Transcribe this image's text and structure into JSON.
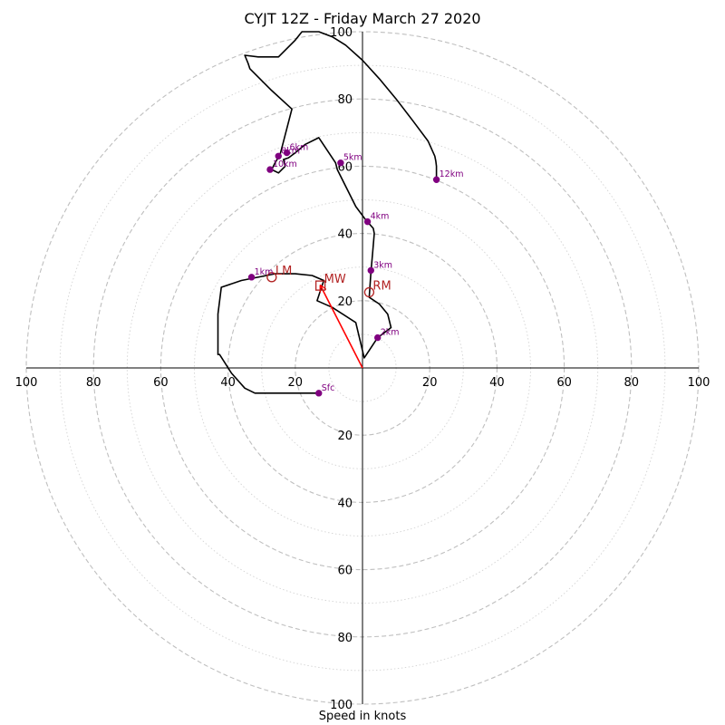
{
  "chart_data": {
    "type": "hodograph",
    "title": "CYJT 12Z - Friday March 27 2020",
    "xlabel": "Speed in knots",
    "units": "knots",
    "xlim": [
      -100,
      100
    ],
    "ylim": [
      -100,
      100
    ],
    "ring_major_step": 20,
    "ring_minor_step": 10,
    "axis_tick_labels": [
      "100",
      "80",
      "60",
      "40",
      "20"
    ],
    "hodograph": {
      "color": "#000000",
      "points": [
        [
          -13,
          -7.5
        ],
        [
          -32,
          -7.5
        ],
        [
          -35,
          -6
        ],
        [
          -39,
          -1.5
        ],
        [
          -42.5,
          4
        ],
        [
          -43,
          4
        ],
        [
          -43,
          16
        ],
        [
          -42,
          24
        ],
        [
          -36,
          26
        ],
        [
          -26,
          28
        ],
        [
          -20,
          28
        ],
        [
          -15,
          27.5
        ],
        [
          -11.5,
          26
        ],
        [
          -13.5,
          20
        ],
        [
          -9,
          18
        ],
        [
          -2,
          13.5
        ],
        [
          0.5,
          3
        ],
        [
          4.5,
          9
        ],
        [
          8.5,
          12
        ],
        [
          7.5,
          16
        ],
        [
          5,
          19
        ],
        [
          2,
          21
        ],
        [
          2.5,
          28.5
        ],
        [
          3,
          34
        ],
        [
          3.5,
          40
        ],
        [
          3.2,
          41.5
        ],
        [
          1,
          44
        ],
        [
          -2,
          48
        ],
        [
          -7.5,
          59
        ],
        [
          -8,
          61
        ],
        [
          -13,
          68.5
        ],
        [
          -17,
          66.5
        ],
        [
          -20,
          64
        ],
        [
          -22,
          62.5
        ],
        [
          -23.5,
          62
        ],
        [
          -23,
          60
        ],
        [
          -25,
          58
        ],
        [
          -27,
          59
        ],
        [
          -26,
          61
        ],
        [
          -24.5,
          63.5
        ],
        [
          -21,
          77
        ],
        [
          -27,
          82.5
        ],
        [
          -33.5,
          89
        ],
        [
          -34,
          90.5
        ],
        [
          -35,
          93
        ],
        [
          -31,
          92.5
        ],
        [
          -25,
          92.5
        ],
        [
          -20,
          97.5
        ],
        [
          -18,
          100
        ],
        [
          -13,
          100
        ],
        [
          -9,
          98.5
        ],
        [
          -5,
          96
        ],
        [
          0,
          91.5
        ],
        [
          5,
          86
        ],
        [
          10,
          80
        ],
        [
          15,
          73.5
        ],
        [
          19.5,
          67.5
        ],
        [
          21.5,
          63
        ],
        [
          21.8,
          61.5
        ],
        [
          22,
          60
        ],
        [
          22,
          56
        ]
      ]
    },
    "height_markers": {
      "color": "#800080",
      "points": [
        {
          "label": "Sfc",
          "u": -13,
          "v": -7.5
        },
        {
          "label": "1km",
          "u": -33,
          "v": 27
        },
        {
          "label": "2km",
          "u": 4.5,
          "v": 9
        },
        {
          "label": "3km",
          "u": 2.5,
          "v": 29
        },
        {
          "label": "4km",
          "u": 1.5,
          "v": 43.5
        },
        {
          "label": "5km",
          "u": -6.5,
          "v": 61
        },
        {
          "label": "6km",
          "u": -22.5,
          "v": 64
        },
        {
          "label": "8km",
          "u": -25,
          "v": 63
        },
        {
          "label": "10km",
          "u": -27.5,
          "v": 59
        },
        {
          "label": "12km",
          "u": 22,
          "v": 56
        }
      ]
    },
    "storm_motion": {
      "color": "#b22222",
      "vector_color": "#ff0000",
      "markers": [
        {
          "label": "MW",
          "shape": "square",
          "u": -12.5,
          "v": 24.5
        },
        {
          "label": "LM",
          "shape": "circle",
          "u": -27,
          "v": 27
        },
        {
          "label": "RM",
          "shape": "circle",
          "u": 2,
          "v": 22.5
        }
      ],
      "vector": {
        "from": [
          0,
          0
        ],
        "to": [
          -12.5,
          24.5
        ]
      }
    },
    "grid": true,
    "grid_color": "#bfbfbf"
  }
}
